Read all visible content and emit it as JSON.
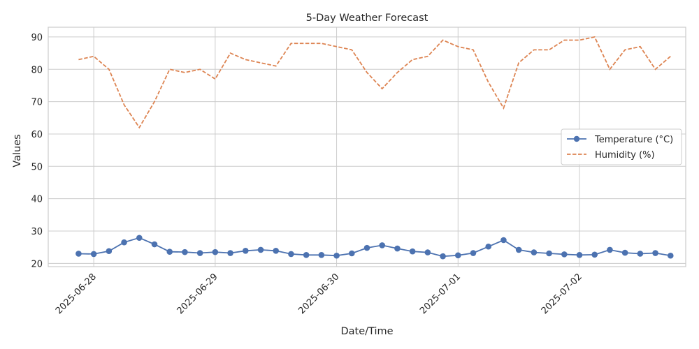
{
  "chart_data": {
    "type": "line",
    "title": "5-Day Weather Forecast",
    "xlabel": "Date/Time",
    "ylabel": "Values",
    "x_tick_labels": [
      "2025-06-28",
      "2025-06-29",
      "2025-06-30",
      "2025-07-01",
      "2025-07-02"
    ],
    "y_ticks": [
      20,
      30,
      40,
      50,
      60,
      70,
      80,
      90
    ],
    "ylim": [
      19,
      93
    ],
    "xlim": [
      "2025-06-27 15:00",
      "2025-07-02 21:00"
    ],
    "grid": true,
    "legend_position": "center-right",
    "x": [
      "2025-06-27 21:00",
      "2025-06-28 00:00",
      "2025-06-28 03:00",
      "2025-06-28 06:00",
      "2025-06-28 09:00",
      "2025-06-28 12:00",
      "2025-06-28 15:00",
      "2025-06-28 18:00",
      "2025-06-28 21:00",
      "2025-06-29 00:00",
      "2025-06-29 03:00",
      "2025-06-29 06:00",
      "2025-06-29 09:00",
      "2025-06-29 12:00",
      "2025-06-29 15:00",
      "2025-06-29 18:00",
      "2025-06-29 21:00",
      "2025-06-30 00:00",
      "2025-06-30 03:00",
      "2025-06-30 06:00",
      "2025-06-30 09:00",
      "2025-06-30 12:00",
      "2025-06-30 15:00",
      "2025-06-30 18:00",
      "2025-06-30 21:00",
      "2025-07-01 00:00",
      "2025-07-01 03:00",
      "2025-07-01 06:00",
      "2025-07-01 09:00",
      "2025-07-01 12:00",
      "2025-07-01 15:00",
      "2025-07-01 18:00",
      "2025-07-01 21:00",
      "2025-07-02 00:00",
      "2025-07-02 03:00",
      "2025-07-02 06:00",
      "2025-07-02 09:00",
      "2025-07-02 12:00",
      "2025-07-02 15:00",
      "2025-07-02 18:00"
    ],
    "series": [
      {
        "name": "Temperature (°C)",
        "color": "#4c72b0",
        "style": "solid-with-circle-markers",
        "values": [
          23.0,
          22.9,
          23.8,
          26.5,
          27.9,
          25.9,
          23.6,
          23.5,
          23.2,
          23.5,
          23.2,
          23.9,
          24.2,
          23.9,
          22.9,
          22.6,
          22.6,
          22.4,
          23.1,
          24.8,
          25.6,
          24.6,
          23.7,
          23.4,
          22.2,
          22.5,
          23.2,
          25.2,
          27.2,
          24.2,
          23.4,
          23.1,
          22.8,
          22.6,
          22.7,
          24.2,
          23.3,
          23.0,
          23.2,
          22.4
        ]
      },
      {
        "name": "Humidity (%)",
        "color": "#dd8452",
        "style": "dashed",
        "values": [
          83,
          84,
          80,
          69,
          62,
          70,
          80,
          79,
          80,
          77,
          85,
          83,
          82,
          81,
          88,
          88,
          88,
          87,
          86,
          79,
          74,
          79,
          83,
          84,
          89,
          87,
          86,
          76,
          68,
          82,
          86,
          86,
          89,
          89,
          90,
          80,
          86,
          87,
          80,
          84
        ]
      }
    ]
  }
}
